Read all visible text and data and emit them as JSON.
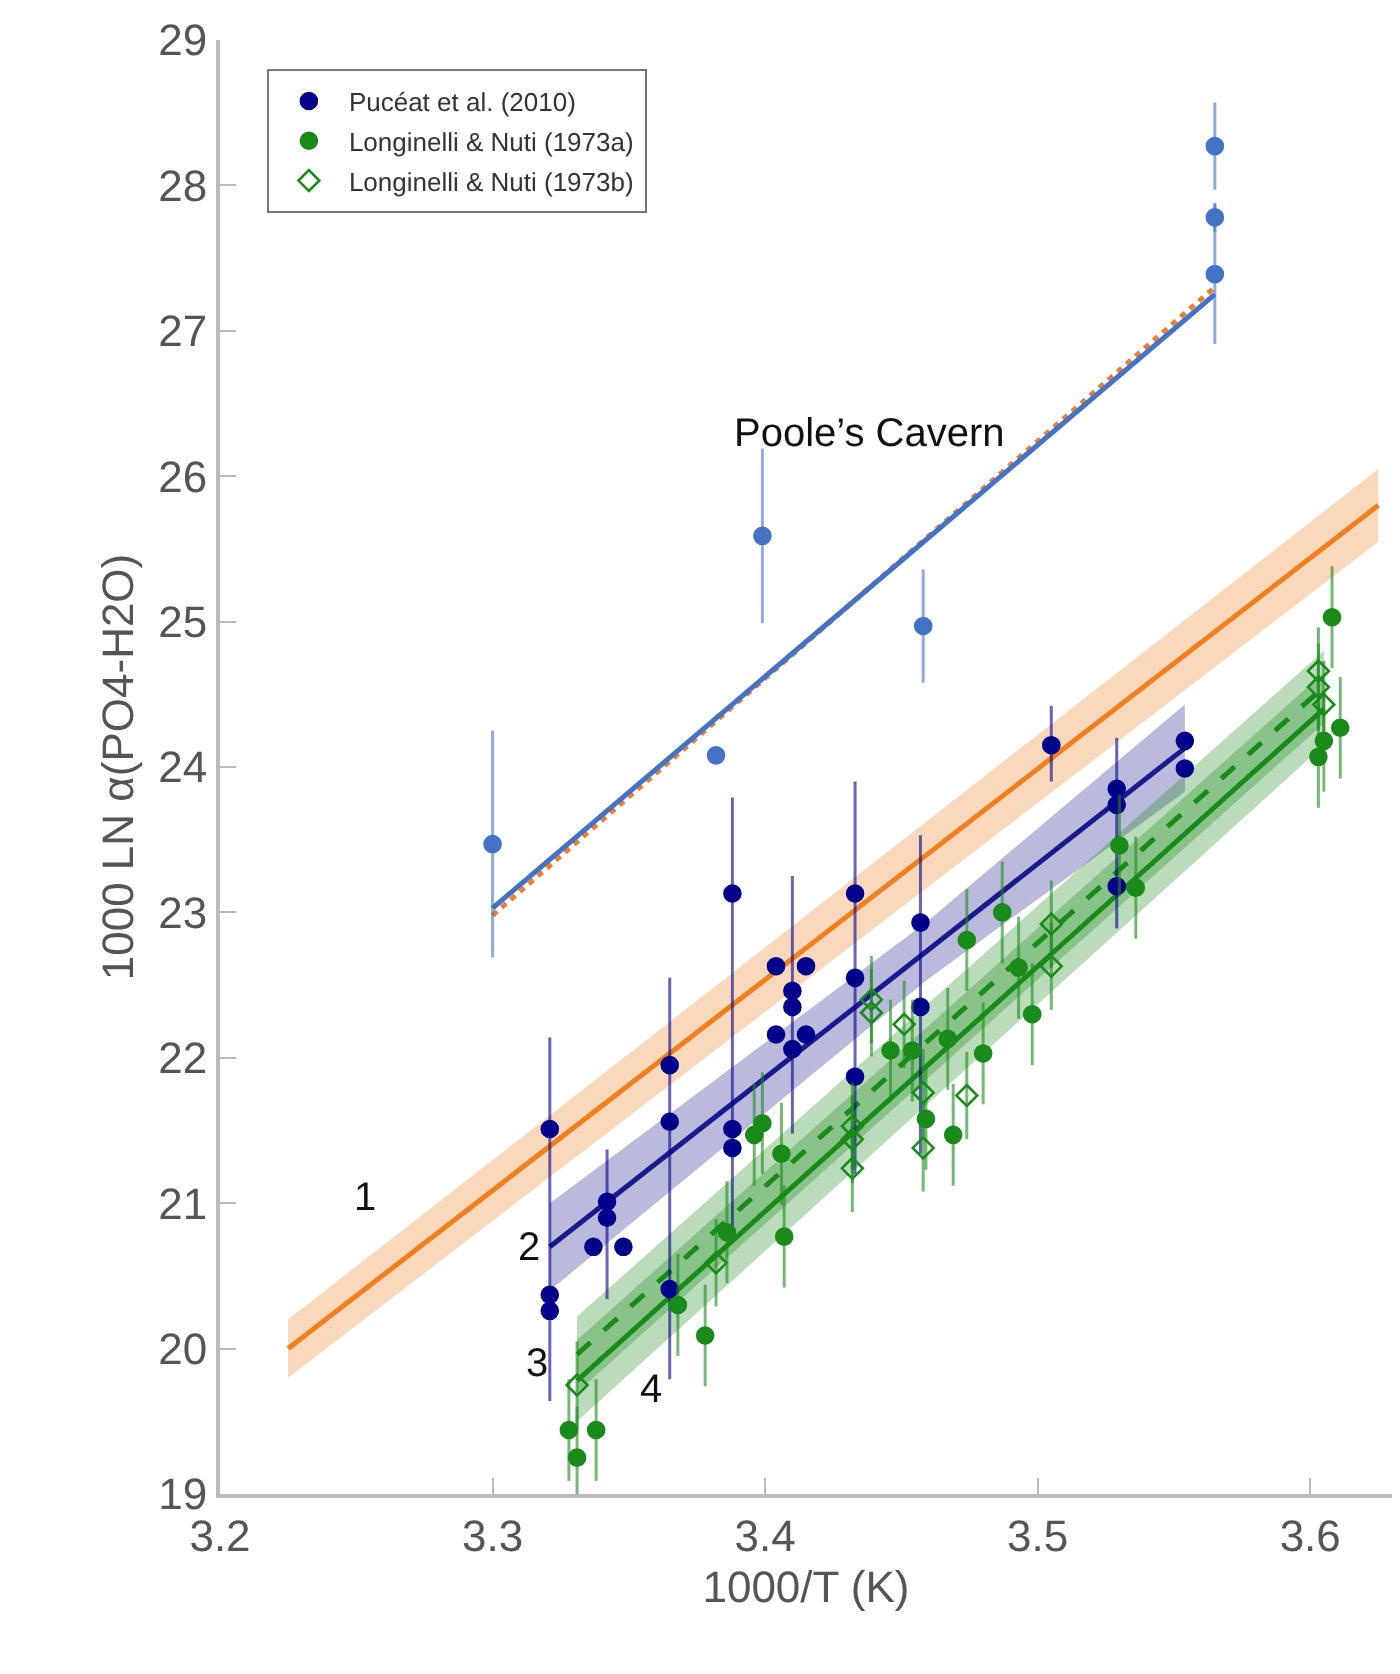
{
  "chart_data": {
    "type": "scatter",
    "xlabel": "1000/T (K)",
    "ylabel": "1000 LN α(PO4-H2O)",
    "xlim": [
      3.2,
      3.63
    ],
    "ylim": [
      19,
      29
    ],
    "xticks": [
      3.2,
      3.3,
      3.4,
      3.5,
      3.6
    ],
    "yticks": [
      19,
      20,
      21,
      22,
      23,
      24,
      25,
      26,
      27,
      28,
      29
    ],
    "grid": false,
    "legend": "top left",
    "annotations": [
      "1",
      "2",
      "3",
      "4",
      "Poole’s Cavern"
    ],
    "series": [
      {
        "type": "line",
        "color": "#f07f1f",
        "marker": "none",
        "line_style": "solid",
        "x": [
          3.225,
          3.625
        ],
        "values": [
          20.0,
          25.8
        ],
        "lower": [
          19.8,
          25.55
        ],
        "upper": [
          20.2,
          26.05
        ]
      },
      {
        "type": "line",
        "color": "#1a1a8c",
        "marker": "none",
        "line_style": "solid",
        "x": [
          3.321,
          3.459,
          3.554
        ],
        "values": [
          20.7,
          22.73,
          24.13
        ],
        "lower": [
          20.4,
          22.53,
          23.83
        ],
        "upper": [
          21.0,
          22.93,
          24.43
        ]
      },
      {
        "type": "line",
        "color": "#1a8a1a",
        "marker": "none",
        "line_style": "solid",
        "x": [
          3.331,
          3.605
        ],
        "values": [
          19.78,
          24.4
        ],
        "lower": [
          19.5,
          24.15
        ],
        "upper": [
          20.06,
          24.65
        ]
      },
      {
        "type": "line",
        "color": "#1a8a1a",
        "marker": "none",
        "line_style": "dashed",
        "x": [
          3.331,
          3.605
        ],
        "values": [
          19.96,
          24.55
        ],
        "lower": [
          19.7,
          24.3
        ],
        "upper": [
          20.22,
          24.8
        ]
      },
      {
        "type": "line",
        "color": "#ed7d31",
        "marker": "none",
        "line_style": "dotted",
        "x": [
          3.3,
          3.565
        ],
        "values": [
          22.98,
          27.3
        ]
      },
      {
        "type": "line",
        "color": "#4472c4",
        "marker": "none",
        "line_style": "solid",
        "x": [
          3.3,
          3.565
        ],
        "values": [
          23.03,
          27.25
        ]
      },
      {
        "color": "#4472c4",
        "marker": "circle",
        "x": [
          3.3,
          3.382,
          3.399,
          3.458,
          3.565,
          3.565,
          3.565
        ],
        "values": [
          23.47,
          24.08,
          25.59,
          24.97,
          28.27,
          27.78,
          27.39
        ],
        "errors": [
          0.78,
          0.05,
          0.6,
          0.39,
          0.3,
          0.1,
          0.48
        ]
      },
      {
        "name": "Pucéat et al. (2010)",
        "color": "#00008b",
        "marker": "circle",
        "x": [
          3.321,
          3.321,
          3.321,
          3.342,
          3.342,
          3.337,
          3.348,
          3.365,
          3.365,
          3.365,
          3.388,
          3.388,
          3.388,
          3.404,
          3.415,
          3.41,
          3.41,
          3.404,
          3.415,
          3.41,
          3.433,
          3.433,
          3.433,
          3.457,
          3.457,
          3.505,
          3.529,
          3.529,
          3.529,
          3.554,
          3.554
        ],
        "values": [
          21.51,
          20.37,
          20.26,
          21.01,
          20.9,
          20.7,
          20.7,
          21.95,
          21.56,
          20.41,
          23.13,
          21.51,
          21.38,
          22.63,
          22.63,
          22.46,
          22.35,
          22.16,
          22.16,
          22.06,
          23.13,
          22.55,
          21.87,
          22.93,
          22.35,
          24.15,
          23.85,
          23.74,
          23.18,
          24.18,
          23.99
        ],
        "errors": [
          null,
          [
            19.64,
            22.14
          ],
          null,
          [
            20.34,
            21.37
          ],
          null,
          null,
          null,
          null,
          [
            19.79,
            22.55
          ],
          null,
          [
            20.8,
            23.79
          ],
          null,
          null,
          null,
          null,
          null,
          [
            21.48,
            23.25
          ],
          null,
          null,
          null,
          null,
          [
            21.2,
            23.9
          ],
          null,
          null,
          [
            21.34,
            23.53
          ],
          [
            23.9,
            24.42
          ],
          null,
          [
            22.89,
            24.2
          ],
          null,
          null,
          null
        ]
      },
      {
        "name": "Longinelli & Nuti (1973a)",
        "color": "#1a8a1a",
        "marker": "circle",
        "x": [
          3.328,
          3.338,
          3.331,
          3.368,
          3.378,
          3.386,
          3.396,
          3.399,
          3.406,
          3.407,
          3.446,
          3.454,
          3.459,
          3.469,
          3.467,
          3.474,
          3.48,
          3.487,
          3.493,
          3.498,
          3.53,
          3.536,
          3.603,
          3.608,
          3.611,
          3.605
        ],
        "values": [
          19.44,
          19.44,
          19.25,
          20.3,
          20.09,
          20.8,
          21.47,
          21.55,
          21.34,
          20.77,
          22.05,
          22.05,
          21.58,
          21.47,
          22.13,
          22.81,
          22.03,
          23.0,
          22.62,
          22.3,
          23.46,
          23.17,
          24.07,
          25.03,
          24.27,
          24.18
        ],
        "errors": [
          0.35,
          0.35,
          0.35,
          0.35,
          0.35,
          0.35,
          0.35,
          0.35,
          0.35,
          0.35,
          0.35,
          0.35,
          0.35,
          0.35,
          0.35,
          0.35,
          0.35,
          0.35,
          0.35,
          0.35,
          0.35,
          0.35,
          0.35,
          0.35,
          0.35,
          0.35
        ]
      },
      {
        "name": "Longinelli & Nuti (1973b)",
        "color": "#1a8a1a",
        "marker": "diamond",
        "x": [
          3.331,
          3.382,
          3.439,
          3.439,
          3.451,
          3.432,
          3.432,
          3.432,
          3.458,
          3.458,
          3.474,
          3.505,
          3.505,
          3.603,
          3.603,
          3.605
        ],
        "values": [
          19.75,
          20.59,
          22.4,
          22.31,
          22.23,
          21.53,
          21.44,
          21.24,
          21.76,
          21.38,
          21.74,
          22.92,
          22.63,
          24.66,
          24.55,
          24.43
        ],
        "errors": [
          0.3,
          0.3,
          0.3,
          0.3,
          0.3,
          0.3,
          0.3,
          0.3,
          0.3,
          0.3,
          0.3,
          0.3,
          0.3,
          0.3,
          0.3,
          0.3
        ]
      }
    ]
  }
}
